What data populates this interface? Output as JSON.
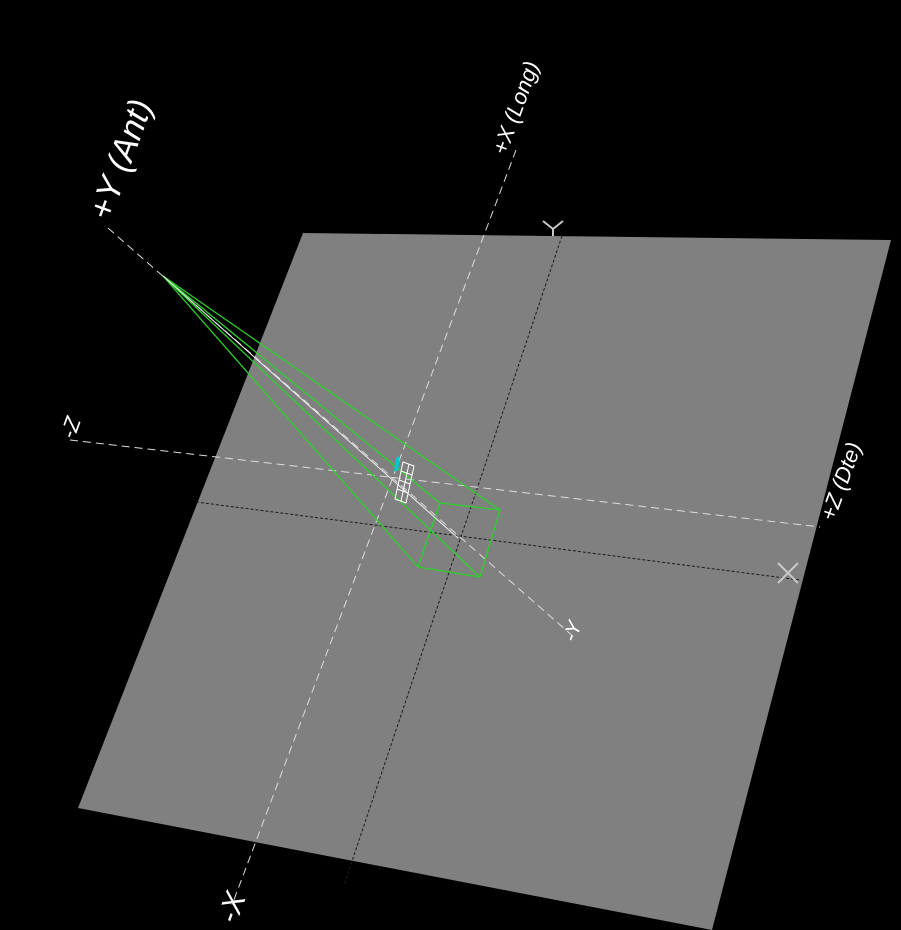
{
  "viewport": {
    "background": "#000000",
    "plane_color": "#808080",
    "axis_colors": {
      "dashed_white": "#e6e6e6",
      "dashed_dark": "#1a1a1a",
      "beam": "#2bd12b",
      "device": "#ffffff",
      "source": "#00c8d2"
    },
    "axis_labels": {
      "plus_y": "+Y (Ant)",
      "plus_x": "+X (Long)",
      "minus_z": "-Z",
      "plus_z": "+Z (Dte)",
      "minus_y": "-Y",
      "minus_x": "-X"
    },
    "plane_markers": {
      "top": "Y",
      "right": "X"
    }
  }
}
